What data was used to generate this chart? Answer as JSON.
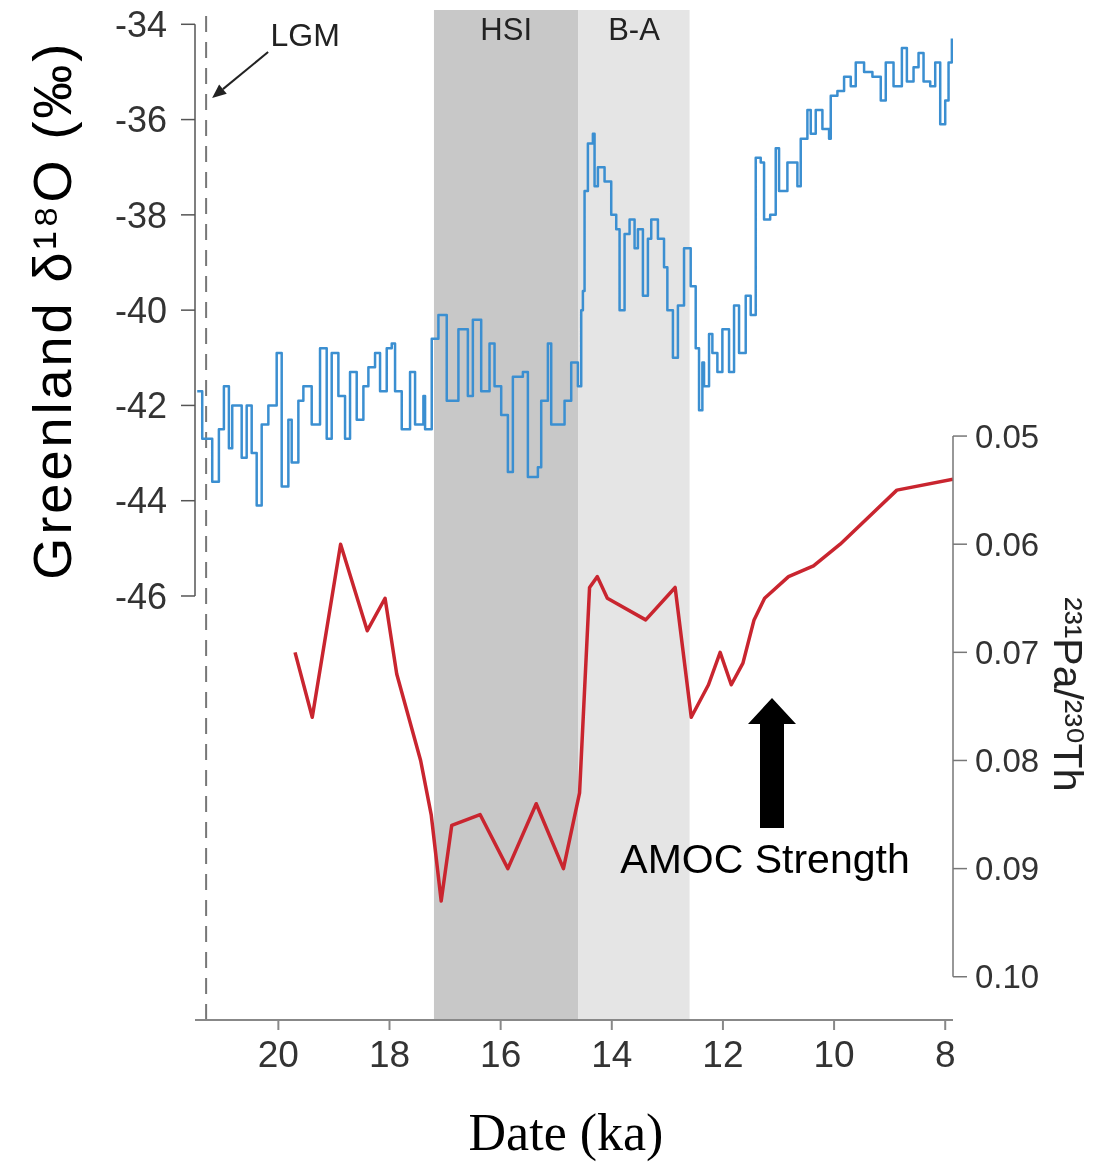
{
  "chart_data": {
    "type": "line",
    "xlabel": "Date (ka)",
    "ylabel": "Greenland δ¹⁸O (‰)",
    "y2label": "²³¹Pa/²³⁰Th",
    "xlim": [
      21.5,
      7.86
    ],
    "xticks": [
      20,
      18,
      16,
      14,
      12,
      10,
      8
    ],
    "ylim": [
      -54.9,
      -33.7
    ],
    "yticks": [
      -46,
      -44,
      -42,
      -40,
      -38,
      -36,
      -34
    ],
    "y2lim": [
      0.104,
      0.0106
    ],
    "y2ticks": [
      0.05,
      0.06,
      0.07,
      0.08,
      0.09,
      {
        "value": 0.1,
        "label": "0.10"
      }
    ],
    "series": [
      {
        "type": "step",
        "color": "#3b8fd1",
        "x": [
          21.46,
          21.37,
          21.19,
          21.07,
          20.98,
          20.89,
          20.83,
          20.66,
          20.57,
          20.48,
          20.39,
          20.3,
          20.18,
          20.03,
          19.94,
          19.82,
          19.76,
          19.64,
          19.55,
          19.4,
          19.25,
          19.13,
          19.04,
          18.92,
          18.8,
          18.71,
          18.59,
          18.47,
          18.38,
          18.26,
          18.17,
          18.05,
          17.96,
          17.9,
          17.78,
          17.63,
          17.54,
          17.39,
          17.36,
          17.24,
          17.12,
          16.97,
          16.76,
          16.59,
          16.5,
          16.35,
          16.2,
          16.11,
          15.99,
          15.87,
          15.78,
          15.6,
          15.51,
          15.33,
          15.27,
          15.15,
          15.09,
          14.85,
          14.73,
          14.61,
          14.55,
          14.52,
          14.49,
          14.43,
          14.34,
          14.31,
          14.25,
          14.13,
          14.01,
          13.92,
          13.86,
          13.77,
          13.68,
          13.59,
          13.53,
          13.44,
          13.35,
          13.29,
          13.17,
          13.06,
          13.0,
          12.9,
          12.81,
          12.7,
          12.58,
          12.49,
          12.43,
          12.37,
          12.34,
          12.25,
          12.19,
          12.1,
          12.01,
          11.89,
          11.8,
          11.71,
          11.59,
          11.5,
          11.41,
          11.32,
          11.26,
          11.15,
          11.05,
          10.99,
          10.84,
          10.66,
          10.6,
          10.48,
          10.42,
          10.33,
          10.21,
          10.09,
          10.06,
          9.94,
          9.82,
          9.7,
          9.61,
          9.46,
          9.31,
          9.16,
          9.07,
          8.93,
          8.78,
          8.69,
          8.57,
          8.48,
          8.39,
          8.27,
          8.18,
          8.09,
          8.0,
          7.94,
          7.88
        ],
        "values": [
          -41.7,
          -42.7,
          -43.6,
          -42.5,
          -41.6,
          -42.9,
          -42.0,
          -43.1,
          -42.0,
          -43.0,
          -44.1,
          -42.4,
          -42.0,
          -40.9,
          -43.7,
          -42.3,
          -43.2,
          -41.9,
          -41.6,
          -42.4,
          -40.8,
          -42.7,
          -40.9,
          -41.8,
          -42.7,
          -41.3,
          -42.3,
          -41.6,
          -41.2,
          -40.9,
          -41.7,
          -40.8,
          -40.7,
          -41.7,
          -42.5,
          -41.3,
          -42.4,
          -41.8,
          -42.5,
          -40.6,
          -40.1,
          -41.9,
          -40.4,
          -41.8,
          -40.2,
          -41.7,
          -40.7,
          -41.6,
          -42.2,
          -43.4,
          -41.4,
          -41.3,
          -43.5,
          -43.3,
          -41.9,
          -40.7,
          -42.4,
          -41.9,
          -41.1,
          -41.6,
          -40.0,
          -39.6,
          -37.5,
          -36.5,
          -36.3,
          -37.4,
          -37.0,
          -37.3,
          -38.0,
          -38.3,
          -40.0,
          -38.4,
          -38.1,
          -38.7,
          -38.3,
          -39.7,
          -38.5,
          -38.1,
          -38.5,
          -39.1,
          -40.0,
          -41.0,
          -39.9,
          -38.7,
          -39.5,
          -40.8,
          -42.1,
          -41.1,
          -41.6,
          -40.5,
          -40.9,
          -41.3,
          -40.4,
          -41.3,
          -39.9,
          -40.9,
          -39.7,
          -40.1,
          -36.8,
          -36.9,
          -38.1,
          -38.0,
          -36.6,
          -37.5,
          -36.9,
          -37.4,
          -36.4,
          -35.8,
          -36.3,
          -35.8,
          -36.2,
          -36.4,
          -35.5,
          -35.4,
          -35.1,
          -35.3,
          -34.8,
          -35.0,
          -35.1,
          -35.6,
          -34.8,
          -35.3,
          -34.5,
          -35.2,
          -34.9,
          -34.6,
          -35.2,
          -35.3,
          -34.8,
          -36.1,
          -35.6,
          -34.8,
          -34.3
        ]
      },
      {
        "axis": "y2",
        "color": "#c9252f",
        "x": [
          19.7,
          19.39,
          18.88,
          18.4,
          18.08,
          17.87,
          17.44,
          17.25,
          17.07,
          16.88,
          16.37,
          15.87,
          15.36,
          14.87,
          14.58,
          14.4,
          14.26,
          14.08,
          13.39,
          12.86,
          12.57,
          12.26,
          12.05,
          11.85,
          11.64,
          11.44,
          11.25,
          10.82,
          10.37,
          9.89,
          8.87,
          7.86
        ],
        "values": [
          0.07,
          0.076,
          0.06,
          0.068,
          0.065,
          0.072,
          0.08,
          0.085,
          0.093,
          0.086,
          0.085,
          0.09,
          0.084,
          0.09,
          0.083,
          0.064,
          0.063,
          0.065,
          0.067,
          0.064,
          0.076,
          0.073,
          0.07,
          0.073,
          0.071,
          0.067,
          0.065,
          0.063,
          0.062,
          0.06,
          0.055,
          0.054
        ]
      }
    ],
    "ref_lines": [
      {
        "axis": "x",
        "value": 21.3,
        "label": "LGM",
        "color": "#777777",
        "line_style": "dashed"
      }
    ],
    "bands": [
      {
        "axis": "x",
        "from": 17.2,
        "to": 14.6,
        "label": "HSI",
        "color": "#c8c8c8"
      },
      {
        "axis": "x",
        "from": 14.6,
        "to": 12.6,
        "label": "B-A",
        "color": "#e5e5e5"
      }
    ],
    "annotations": [
      "AMOC Strength"
    ]
  }
}
